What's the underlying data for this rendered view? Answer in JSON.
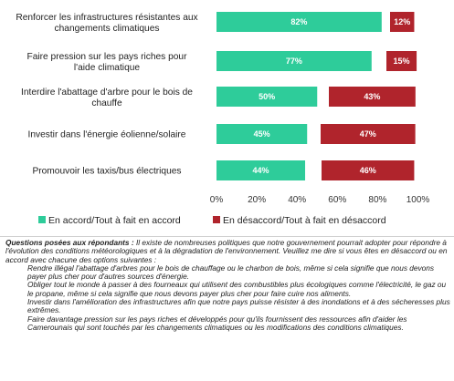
{
  "chart_data": {
    "type": "bar",
    "orientation": "horizontal",
    "stacked": false,
    "categories": [
      "Renforcer les infrastructures résistantes aux changements climatiques",
      "Faire pression sur les pays riches pour l'aide climatique",
      "Interdire l'abattage d'arbre pour le bois de chauffe",
      "Investir dans l'énergie éolienne/solaire",
      "Promouvoir les taxis/bus électriques"
    ],
    "series": [
      {
        "name": "En accord/Tout à fait en accord",
        "values": [
          82,
          77,
          50,
          45,
          44
        ],
        "labels": [
          "82%",
          "77%",
          "50%",
          "45%",
          "44%"
        ],
        "color": "#2ecc9a"
      },
      {
        "name": "En désaccord/Tout à fait en désaccord",
        "values": [
          12,
          15,
          43,
          47,
          46
        ],
        "labels": [
          "12%",
          "15%",
          "43%",
          "47%",
          "46%"
        ],
        "color": "#b0242c"
      }
    ],
    "xlim": [
      0,
      100
    ],
    "xticks": [
      "0%",
      "20%",
      "40%",
      "60%",
      "80%",
      "100%"
    ],
    "legend_position": "bottom",
    "grid": false
  },
  "notes": {
    "question_label": "Questions posées aux répondants :",
    "question_text": "Il existe de nombreuses politiques que notre gouvernement pourrait adopter pour répondre à l'évolution des conditions météorologiques et à la dégradation de l'environnement. Veuillez me dire si vous êtes en désaccord ou en accord avec chacune des options suivantes :",
    "items": [
      "Rendre illégal l'abattage d'arbres pour le bois de chauffage ou le charbon de bois, même si cela signifie que nous devons payer plus cher pour d'autres sources d'énergie.",
      "Obliger tout le monde à passer à des fourneaux qui utilisent des combustibles plus écologiques comme l'électricité, le gaz ou le propane, même si cela signifie que nous devons payer plus cher pour faire cuire nos aliments.",
      "Investir dans l'amélioration des infrastructures afin que notre pays puisse résister à des inondations et à des sécheresses plus extrêmes.",
      "Faire davantage pression sur les pays riches et développés pour qu'ils fournissent des ressources afin d'aider les Camerounais qui sont touchés par les changements climatiques ou les modifications des conditions climatiques."
    ]
  }
}
